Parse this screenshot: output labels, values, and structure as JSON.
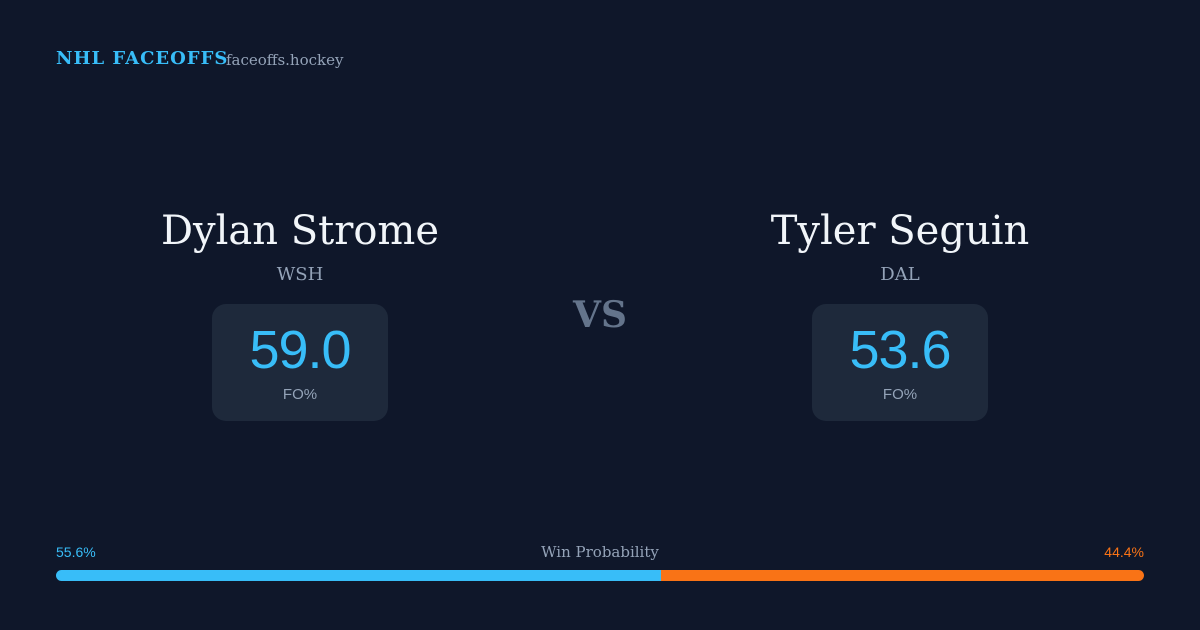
{
  "header": {
    "brand": "NHL FACEOFFS",
    "site": "faceoffs.hockey"
  },
  "players": [
    {
      "name": "Dylan Strome",
      "team": "WSH",
      "stat": "59.0",
      "stat_label": "FO%"
    },
    {
      "name": "Tyler Seguin",
      "team": "DAL",
      "stat": "53.6",
      "stat_label": "FO%"
    }
  ],
  "versus": "VS",
  "win_probability": {
    "label": "Win Probability",
    "values": [
      55.6,
      44.4
    ],
    "value_labels": [
      "55.6%",
      "44.4%"
    ],
    "colors": [
      "#38bdf8",
      "#f97316"
    ]
  }
}
